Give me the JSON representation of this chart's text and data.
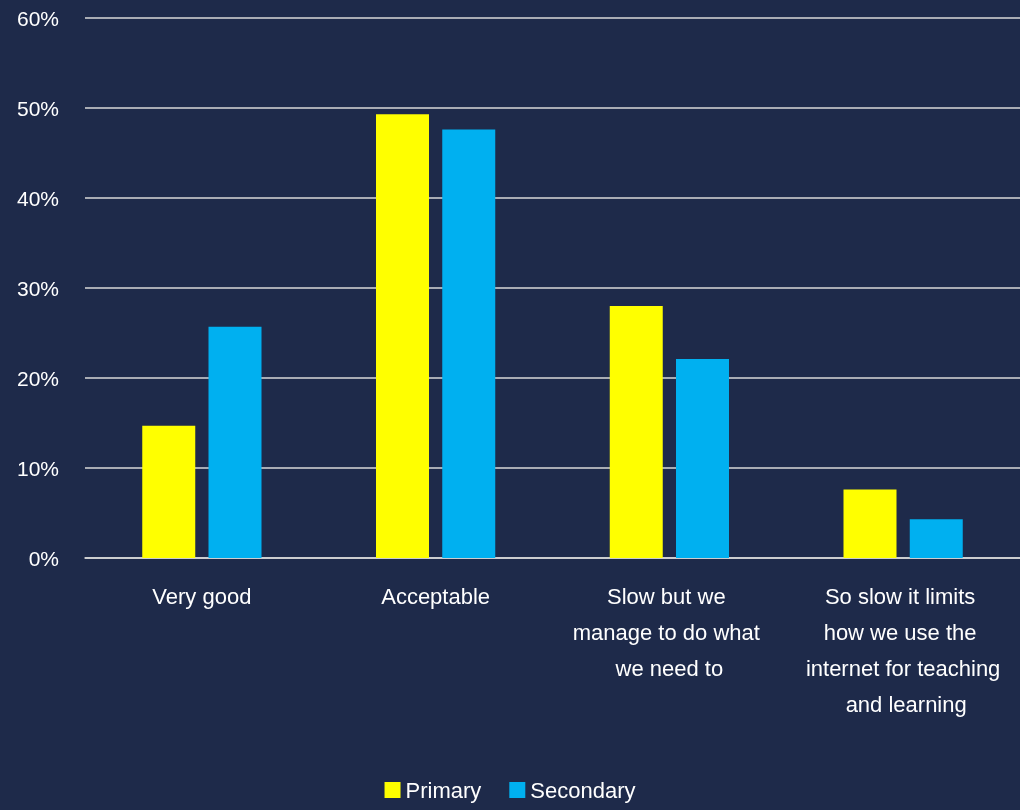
{
  "chart_data": {
    "type": "bar",
    "categories": [
      "Very good",
      "Acceptable",
      "Slow but we manage to do what we need to",
      "So slow it limits how we use the internet for teaching and learning"
    ],
    "series": [
      {
        "name": "Primary",
        "color": "#ffff00",
        "values": [
          14.7,
          49.3,
          28.0,
          7.6
        ]
      },
      {
        "name": "Secondary",
        "color": "#00b0f0",
        "values": [
          25.7,
          47.6,
          22.1,
          4.3
        ]
      }
    ],
    "ylim": [
      0,
      60
    ],
    "yticks": [
      {
        "value": 0,
        "label": "0%"
      },
      {
        "value": 10,
        "label": "10%"
      },
      {
        "value": 20,
        "label": "20%"
      },
      {
        "value": 30,
        "label": "30%"
      },
      {
        "value": 40,
        "label": "40%"
      },
      {
        "value": 50,
        "label": "50%"
      },
      {
        "value": 60,
        "label": "60%"
      }
    ],
    "grid": "y",
    "legend": "bottom"
  }
}
